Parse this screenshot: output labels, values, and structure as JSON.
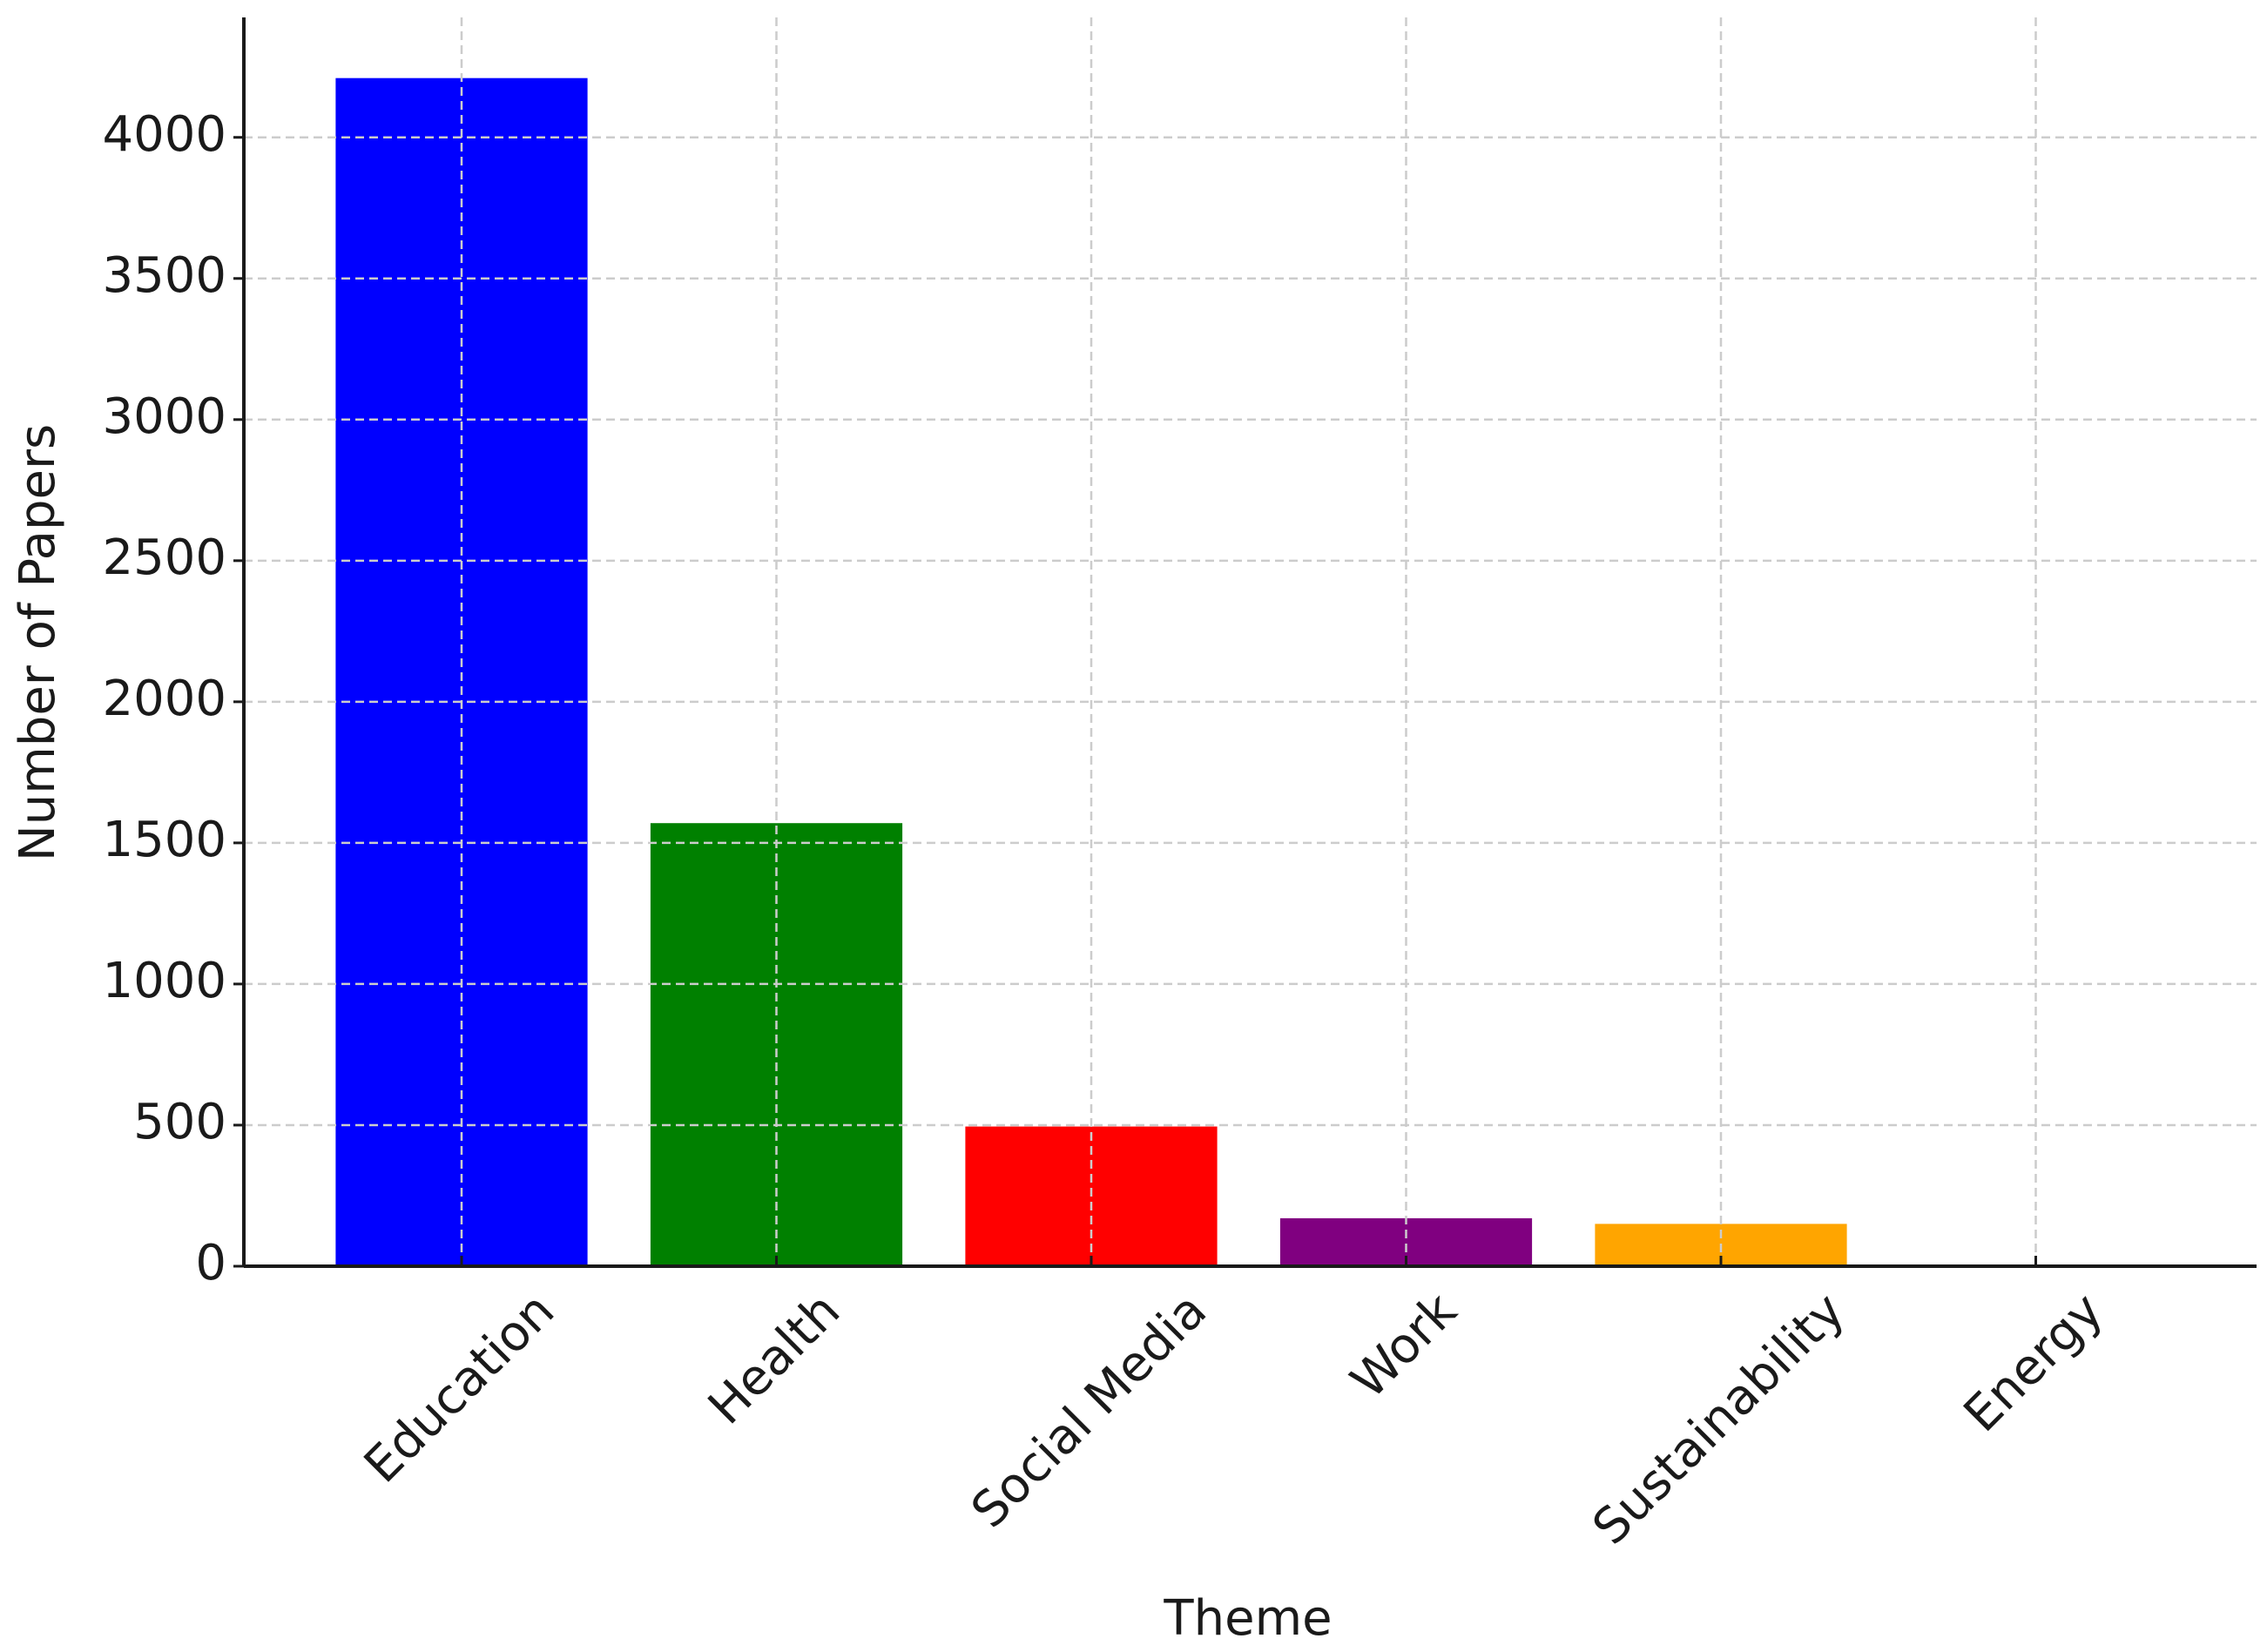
{
  "chart_data": {
    "type": "bar",
    "xlabel": "Theme",
    "ylabel": "Number of Papers",
    "categories": [
      "Education",
      "Health",
      "Social Media",
      "Work",
      "Sustainability",
      "Energy"
    ],
    "values": [
      4210,
      1570,
      495,
      170,
      150,
      0
    ],
    "colors": [
      "#0000ff",
      "#008000",
      "#ff0000",
      "#800080",
      "#ffa500",
      "#a52a2a"
    ],
    "ylim": [
      0,
      4425
    ],
    "yticks": [
      0,
      500,
      1000,
      1500,
      2000,
      2500,
      3000,
      3500,
      4000
    ],
    "grid": true
  }
}
